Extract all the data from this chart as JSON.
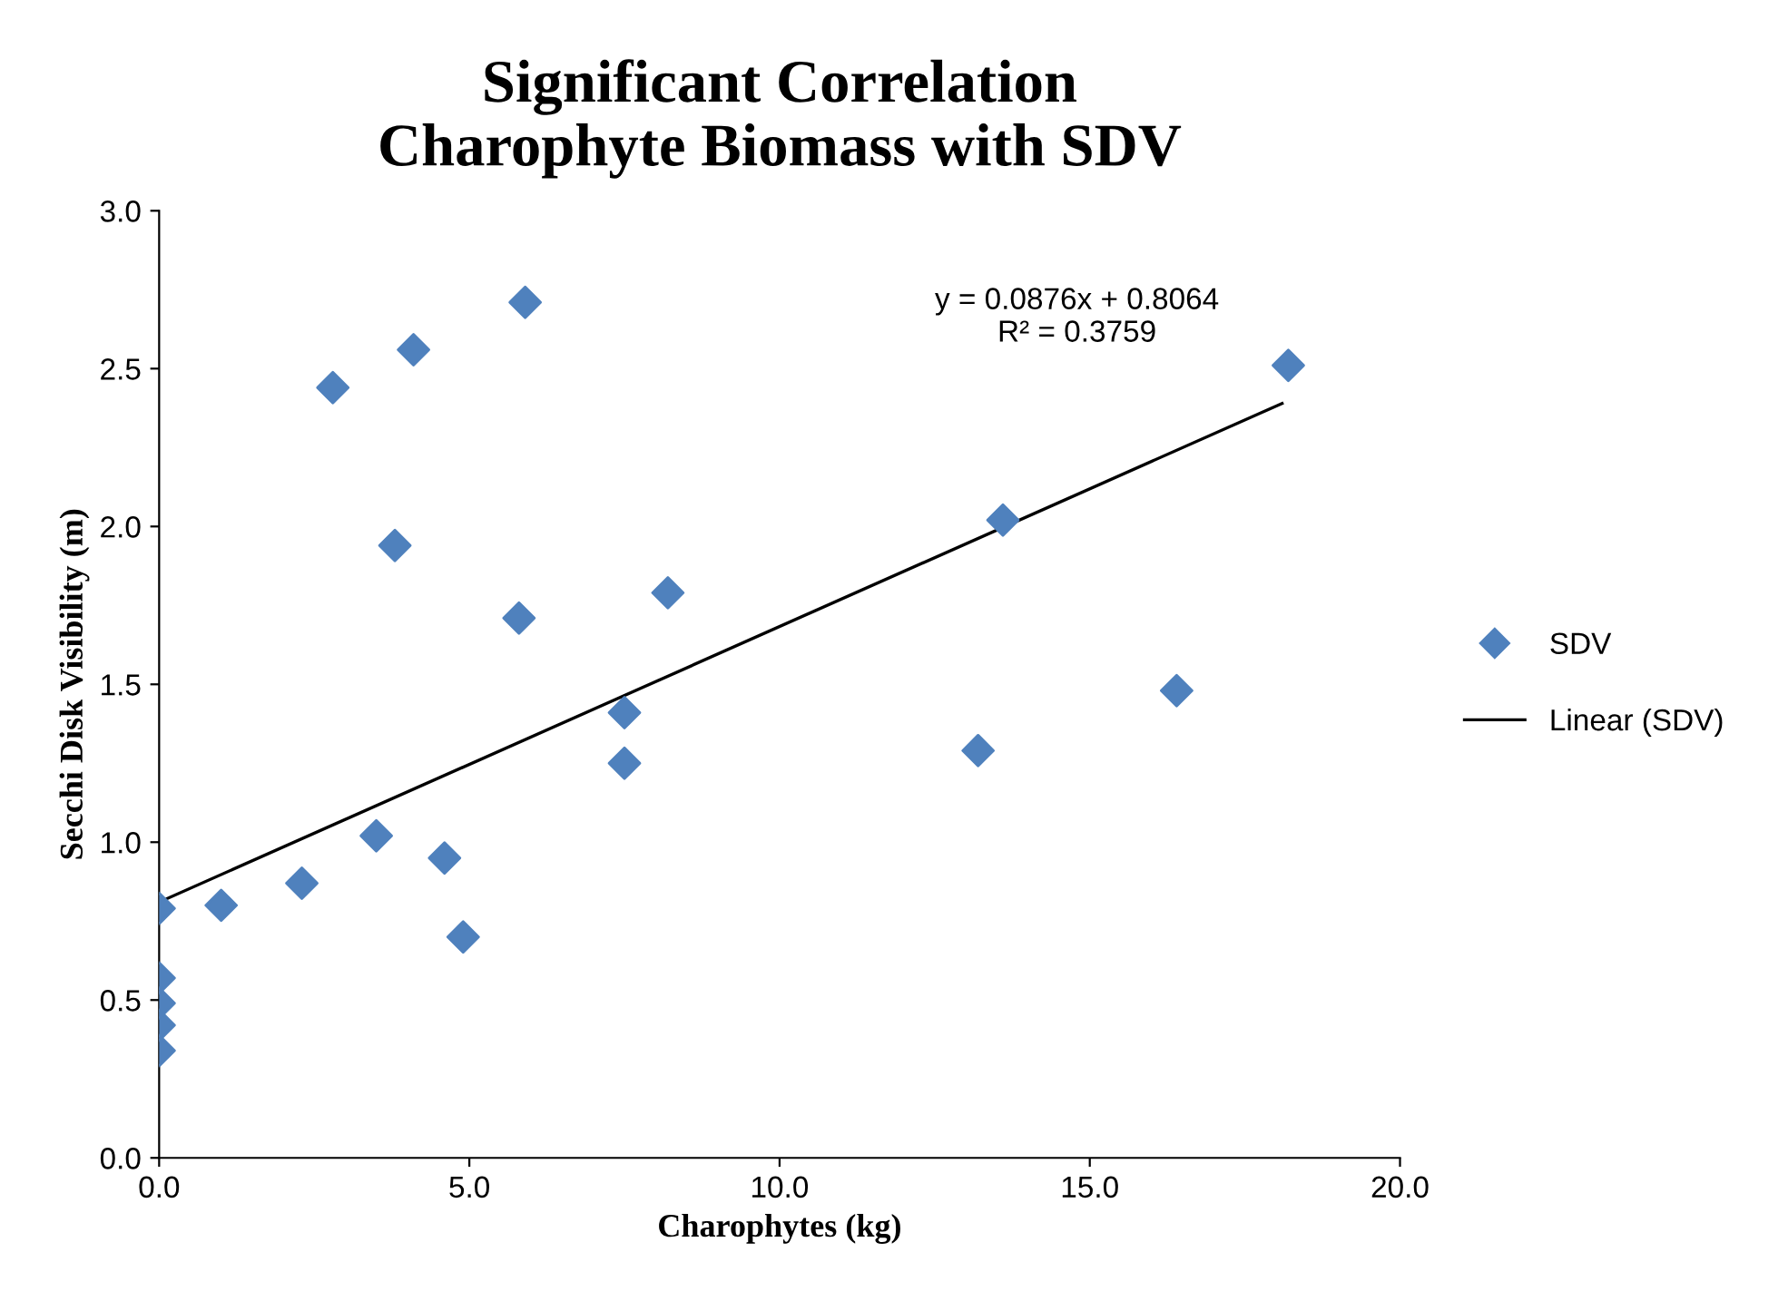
{
  "chart_data": {
    "type": "scatter",
    "title": "Significant Correlation\nCharophyte Biomass with SDV",
    "xlabel": "Charophytes (kg)",
    "ylabel": "Secchi Disk Visibility (m)",
    "xlim": [
      0,
      20
    ],
    "xticks": [
      {
        "value": 0,
        "label": "0.0"
      },
      {
        "value": 5,
        "label": "5.0"
      },
      {
        "value": 10,
        "label": "10.0"
      },
      {
        "value": 15,
        "label": "15.0"
      },
      {
        "value": 20,
        "label": "20.0"
      }
    ],
    "ylim": [
      0,
      3
    ],
    "yticks": [
      {
        "value": 0,
        "label": "0.0"
      },
      {
        "value": 0.5,
        "label": "0.5"
      },
      {
        "value": 1,
        "label": "1.0"
      },
      {
        "value": 1.5,
        "label": "1.5"
      },
      {
        "value": 2,
        "label": "2.0"
      },
      {
        "value": 2.5,
        "label": "2.5"
      },
      {
        "value": 3,
        "label": "3.0"
      }
    ],
    "grid": false,
    "legend": "right",
    "series": [
      {
        "name": "SDV",
        "marker": "diamond",
        "color": "#4f81bd",
        "x": [
          0.0,
          0.0,
          0.0,
          0.0,
          0.0,
          1.0,
          2.3,
          2.8,
          3.5,
          3.8,
          4.1,
          4.6,
          4.9,
          5.8,
          5.9,
          7.5,
          7.5,
          8.2,
          13.2,
          13.6,
          16.4,
          18.2
        ],
        "values": [
          0.34,
          0.42,
          0.49,
          0.57,
          0.79,
          0.8,
          0.87,
          2.44,
          1.02,
          1.94,
          2.56,
          0.95,
          0.7,
          1.71,
          2.71,
          1.41,
          1.25,
          1.79,
          1.29,
          2.02,
          1.48,
          2.51
        ]
      },
      {
        "name": "Linear (SDV)",
        "type": "line",
        "color": "#000000",
        "x": [
          0.0,
          18.1
        ],
        "values": [
          0.81,
          2.39
        ]
      }
    ],
    "annotations": [
      {
        "text": "y = 0.0876x + 0.8064\nR² = 0.3759",
        "x": 18.1,
        "y": 2.39
      }
    ]
  }
}
